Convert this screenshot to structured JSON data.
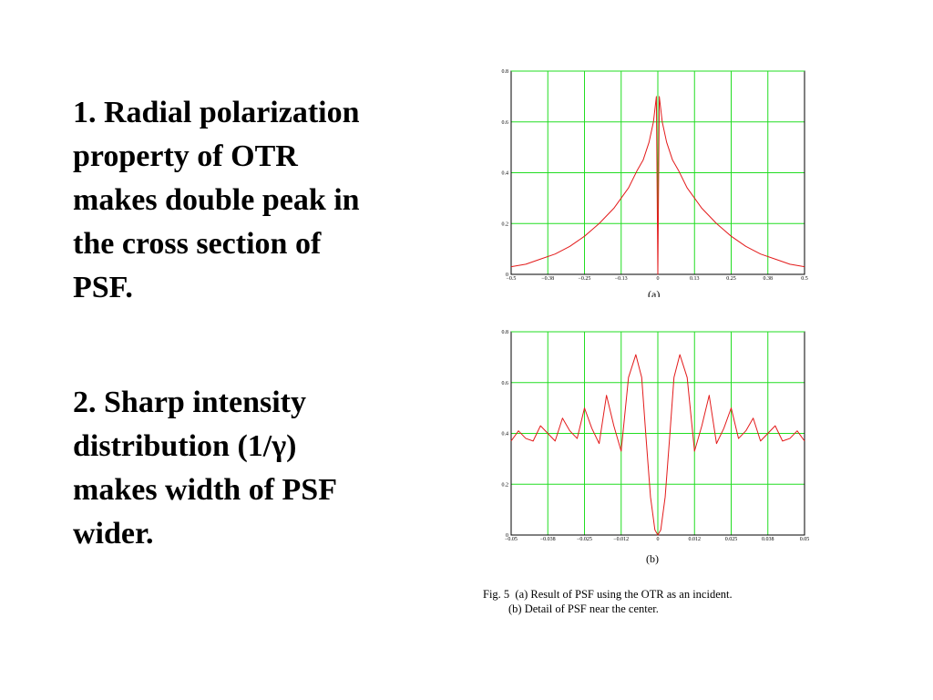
{
  "bullets": [
    "1. Radial polarization\nproperty of OTR\nmakes double peak in\nthe cross section of\nPSF.",
    "2. Sharp intensity\ndistribution (1/γ)\nmakes width of PSF\nwider."
  ],
  "colors": {
    "grid": "#22dd22",
    "curve": "#e31b1b",
    "frame": "#000000"
  },
  "chart_data": [
    {
      "type": "line",
      "label": "(a)",
      "x_ticks": [
        "−0.5",
        "−0.38",
        "−0.25",
        "−0.13",
        "0",
        "0.13",
        "0.25",
        "0.38",
        "0.5"
      ],
      "y_ticks": [
        "0",
        "0.2",
        "0.4",
        "0.6",
        "0.8"
      ],
      "xlim": [
        -0.5,
        0.5
      ],
      "ylim": [
        0,
        0.8
      ],
      "grid": true,
      "x": [
        -0.5,
        -0.45,
        -0.4,
        -0.35,
        -0.3,
        -0.25,
        -0.2,
        -0.15,
        -0.1,
        -0.07,
        -0.05,
        -0.03,
        -0.015,
        -0.005,
        0,
        0.005,
        0.015,
        0.03,
        0.05,
        0.07,
        0.1,
        0.15,
        0.2,
        0.25,
        0.3,
        0.35,
        0.4,
        0.45,
        0.5
      ],
      "y": [
        0.03,
        0.04,
        0.06,
        0.08,
        0.11,
        0.15,
        0.2,
        0.26,
        0.34,
        0.41,
        0.45,
        0.52,
        0.6,
        0.7,
        0,
        0.7,
        0.6,
        0.52,
        0.45,
        0.41,
        0.34,
        0.26,
        0.2,
        0.15,
        0.11,
        0.08,
        0.06,
        0.04,
        0.03
      ]
    },
    {
      "type": "line",
      "label": "(b)",
      "x_ticks": [
        "−0.05",
        "−0.038",
        "−0.025",
        "−0.012",
        "0",
        "0.012",
        "0.025",
        "0.038",
        "0.05"
      ],
      "y_ticks": [
        "0",
        "0.2",
        "0.4",
        "0.6",
        "0.8"
      ],
      "xlim": [
        -0.05,
        0.05
      ],
      "ylim": [
        0,
        0.8
      ],
      "grid": true,
      "x": [
        -0.05,
        -0.0475,
        -0.045,
        -0.0425,
        -0.04,
        -0.0375,
        -0.035,
        -0.0325,
        -0.03,
        -0.0275,
        -0.025,
        -0.0225,
        -0.02,
        -0.0175,
        -0.015,
        -0.0125,
        -0.01,
        -0.0075,
        -0.0055,
        -0.004,
        -0.0025,
        -0.001,
        0,
        0.001,
        0.0025,
        0.004,
        0.0055,
        0.0075,
        0.01,
        0.0125,
        0.015,
        0.0175,
        0.02,
        0.0225,
        0.025,
        0.0275,
        0.03,
        0.0325,
        0.035,
        0.0375,
        0.04,
        0.0425,
        0.045,
        0.0475,
        0.05
      ],
      "y": [
        0.37,
        0.41,
        0.38,
        0.37,
        0.43,
        0.4,
        0.37,
        0.46,
        0.41,
        0.38,
        0.5,
        0.42,
        0.36,
        0.55,
        0.43,
        0.33,
        0.62,
        0.71,
        0.62,
        0.38,
        0.15,
        0.02,
        0,
        0.02,
        0.15,
        0.38,
        0.62,
        0.71,
        0.62,
        0.33,
        0.43,
        0.55,
        0.36,
        0.42,
        0.5,
        0.38,
        0.41,
        0.46,
        0.37,
        0.4,
        0.43,
        0.37,
        0.38,
        0.41,
        0.37
      ]
    }
  ],
  "sublabels": [
    "(a)",
    "(b)"
  ],
  "caption": {
    "line1": "Fig. 5  (a) Result of PSF using the OTR as an incident.",
    "line2": "(b) Detail of PSF near the center."
  }
}
